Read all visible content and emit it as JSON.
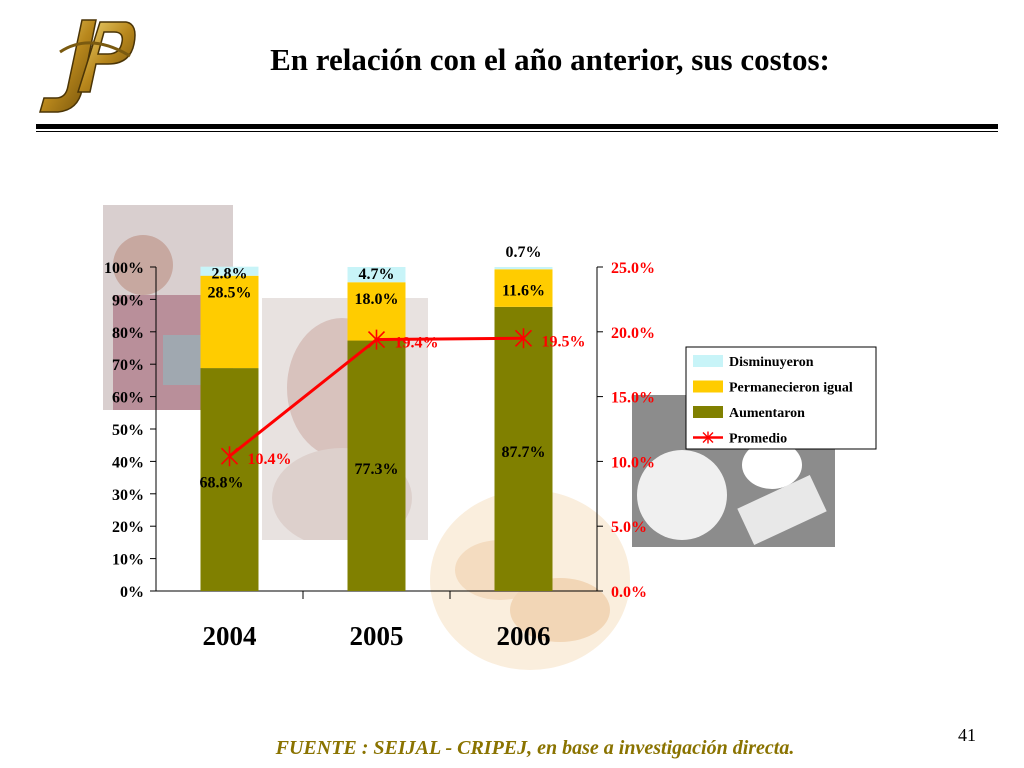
{
  "slide": {
    "logo_text": "JSP",
    "title": "En relación con el año anterior, sus costos:",
    "footer": "FUENTE :  SEIJAL - CRIPEJ,  en base a investigación directa.",
    "page_number": "41"
  },
  "colors": {
    "disminuyeron": "#c8f4f8",
    "permanecieron": "#ffcc00",
    "aumentaron": "#808000",
    "promedio": "#ff0000",
    "footer": "#8a7300",
    "logo": "#c09020"
  },
  "chart_data": {
    "type": "bar",
    "stacked": true,
    "categories": [
      "2004",
      "2005",
      "2006"
    ],
    "series": [
      {
        "name": "Aumentaron",
        "values": [
          68.8,
          77.3,
          87.7
        ],
        "labels": [
          "68.8%",
          "77.3%",
          "87.7%"
        ],
        "axis": "left"
      },
      {
        "name": "Permanecieron igual",
        "values": [
          28.5,
          18.0,
          11.6
        ],
        "labels": [
          "28.5%",
          "18.0%",
          "11.6%"
        ],
        "axis": "left"
      },
      {
        "name": "Disminuyeron",
        "values": [
          2.8,
          4.7,
          0.7
        ],
        "labels": [
          "2.8%",
          "4.7%",
          "0.7%"
        ],
        "axis": "left"
      }
    ],
    "line": {
      "name": "Promedio",
      "type": "line",
      "values": [
        10.4,
        19.4,
        19.5
      ],
      "labels": [
        "10.4%",
        "19.4%",
        "19.5%"
      ],
      "axis": "right"
    },
    "y_left": {
      "range": [
        0,
        100
      ],
      "ticks": [
        "0%",
        "10%",
        "20%",
        "30%",
        "40%",
        "50%",
        "60%",
        "70%",
        "80%",
        "90%",
        "100%"
      ]
    },
    "y_right": {
      "range": [
        0,
        25
      ],
      "ticks": [
        "0.0%",
        "5.0%",
        "10.0%",
        "15.0%",
        "20.0%",
        "25.0%"
      ]
    },
    "legend": {
      "position": "right",
      "entries": [
        "Disminuyeron",
        "Permanecieron igual",
        "Aumentaron",
        "Promedio"
      ]
    },
    "grid": false
  }
}
